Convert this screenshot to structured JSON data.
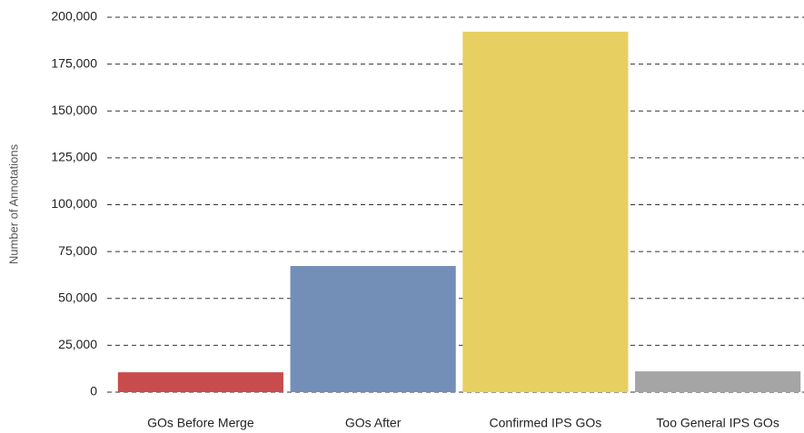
{
  "chart_data": {
    "type": "bar",
    "y_label": "Number of Annotations",
    "categories": [
      "GOs Before Merge",
      "GOs After",
      "Confirmed IPS GOs",
      "Too General IPS GOs"
    ],
    "values": [
      10600,
      67300,
      192300,
      11100
    ],
    "colors": [
      "#c94c4c",
      "#738fb7",
      "#e8cf62",
      "#a5a5a5"
    ],
    "ylim": [
      0,
      200000
    ],
    "yticks": [
      0,
      {
        "value": 25000,
        "label": "25,000"
      },
      {
        "value": 50000,
        "label": "50,000"
      },
      {
        "value": 75000,
        "label": "75,000"
      },
      {
        "value": 100000,
        "label": "100,000"
      },
      {
        "value": 125000,
        "label": "125,000"
      },
      {
        "value": 150000,
        "label": "150,000"
      },
      {
        "value": 175000,
        "label": "175,000"
      },
      {
        "value": 200000,
        "label": "200,000"
      }
    ],
    "grid": true
  }
}
